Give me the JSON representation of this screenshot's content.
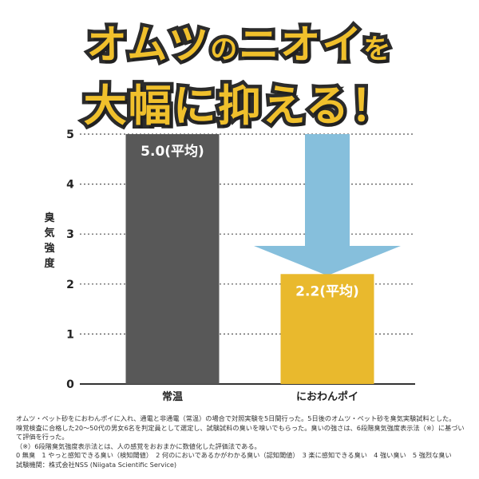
{
  "headline": {
    "line1_part1": "オムツ",
    "line1_small": "の",
    "line1_part2": "ニオイ",
    "line1_part3": "を",
    "line2": "大幅に抑える！"
  },
  "colors": {
    "headline_fill": "#f0c02c",
    "headline_stroke": "#2b2b2b",
    "bar_normal": "#585858",
    "bar_product": "#e9b92d",
    "arrow": "#86bfdc",
    "grid": "#555555"
  },
  "chart_data": {
    "type": "bar",
    "categories": [
      "常温",
      "におわんポイ"
    ],
    "values": [
      5.0,
      2.2
    ],
    "data_labels": [
      "5.0(平均)",
      "2.2(平均)"
    ],
    "title": "",
    "xlabel": "",
    "ylabel": "臭気強度",
    "ylim": [
      0,
      5
    ],
    "yticks": [
      "0",
      "1",
      "2",
      "3",
      "4",
      "5"
    ],
    "grid": true,
    "annotation": "down-arrow"
  },
  "notes": [
    "オムツ・ペット砂をにおわんポイに入れ、通電と非通電（常温）の場合で対照実験を5日間行った。5日後のオムツ・ペット砂を臭気実験試料とした。",
    "嗅覚検査に合格した20〜50代の男女6名を判定員として選定し、試験試料の臭いを嗅いでもらった。臭いの強さは、6段階臭気強度表示法（※）に基づいて評価を行った。",
    "（※）6段階臭気強度表示法とは、人の感覚をおおまかに数値化した評価法である。",
    "0 無臭　1 やっと感知できる臭い（検知閾値）　2 何のにおいであるかがわかる臭い（認知閾値）　3 楽に感知できる臭い　4 強い臭い　5 強烈な臭い",
    "試験機関：株式会社NSS (Niigata Scientific Service)"
  ]
}
